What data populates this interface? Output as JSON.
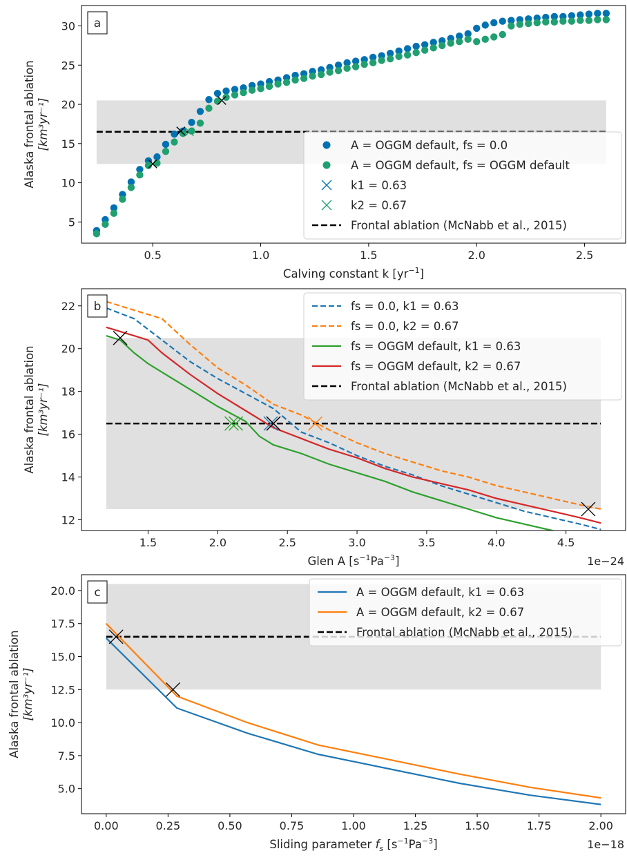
{
  "chart_data": [
    {
      "type": "scatter",
      "panel_label": "a",
      "xlabel_main": "Calving constant k [yr",
      "xlabel_sup": "−1",
      "xlabel_end": "]",
      "ylabel_line1": "Alaska frontal ablation",
      "ylabel_line2": "[km³yr⁻¹]",
      "xlim": [
        0.17,
        2.69
      ],
      "ylim": [
        2.3,
        32.6
      ],
      "xticks": [
        0.5,
        1.0,
        1.5,
        2.0,
        2.5
      ],
      "xtick_labels": [
        "0.5",
        "1.0",
        "1.5",
        "2.0",
        "2.5"
      ],
      "yticks": [
        5,
        10,
        15,
        20,
        25,
        30
      ],
      "ytick_labels": [
        "5",
        "10",
        "15",
        "20",
        "25",
        "30"
      ],
      "band": {
        "y0": 12.4,
        "y1": 20.5,
        "x0": 0.24,
        "x1": 2.6,
        "color": "#e0e0e0"
      },
      "hline": {
        "y": 16.5,
        "x0": 0.24,
        "x1": 2.6
      },
      "x": [
        0.24,
        0.28,
        0.32,
        0.36,
        0.4,
        0.44,
        0.48,
        0.52,
        0.56,
        0.6,
        0.64,
        0.68,
        0.72,
        0.76,
        0.8,
        0.84,
        0.88,
        0.92,
        0.96,
        1.0,
        1.04,
        1.08,
        1.12,
        1.16,
        1.2,
        1.24,
        1.28,
        1.32,
        1.36,
        1.4,
        1.44,
        1.48,
        1.52,
        1.56,
        1.6,
        1.64,
        1.68,
        1.72,
        1.76,
        1.8,
        1.84,
        1.88,
        1.92,
        1.96,
        2.0,
        2.04,
        2.08,
        2.12,
        2.16,
        2.2,
        2.24,
        2.28,
        2.32,
        2.36,
        2.4,
        2.44,
        2.48,
        2.52,
        2.56,
        2.6
      ],
      "series": [
        {
          "name": "A = OGGM default, fs = 0.0",
          "color": "#0072b2",
          "values": [
            3.9,
            5.3,
            6.8,
            8.5,
            10.1,
            11.7,
            12.8,
            13.3,
            14.9,
            16.2,
            16.6,
            17.7,
            19.1,
            20.6,
            21.4,
            21.7,
            21.9,
            22.1,
            22.4,
            22.6,
            22.9,
            23.1,
            23.4,
            23.7,
            23.9,
            24.2,
            24.4,
            24.7,
            25.0,
            25.3,
            25.5,
            25.7,
            26.0,
            26.2,
            26.5,
            26.8,
            27.1,
            27.4,
            27.6,
            27.9,
            28.1,
            28.4,
            28.7,
            29.0,
            29.7,
            30.1,
            30.4,
            30.6,
            30.7,
            30.8,
            30.9,
            31.0,
            31.1,
            31.2,
            31.2,
            31.3,
            31.4,
            31.5,
            31.6,
            31.6
          ]
        },
        {
          "name": "A = OGGM default, fs = OGGM default",
          "color": "#20a070",
          "values": [
            3.5,
            4.7,
            6.1,
            7.9,
            9.4,
            11.0,
            12.2,
            12.5,
            14.0,
            15.2,
            16.3,
            16.6,
            17.6,
            19.5,
            20.4,
            20.9,
            21.2,
            21.5,
            21.8,
            22.0,
            22.3,
            22.6,
            22.8,
            23.1,
            23.3,
            23.6,
            23.8,
            24.1,
            24.3,
            24.6,
            24.8,
            25.1,
            25.3,
            25.6,
            25.8,
            26.1,
            26.3,
            26.6,
            26.9,
            27.2,
            27.5,
            27.8,
            28.0,
            28.3,
            28.0,
            28.3,
            28.6,
            28.9,
            30.0,
            30.2,
            30.3,
            30.4,
            30.5,
            30.5,
            30.6,
            30.6,
            30.7,
            30.7,
            30.8,
            30.8
          ]
        }
      ],
      "markers": [
        {
          "name": "k1 = 0.63",
          "color": "#0072b2",
          "x": [
            0.63
          ],
          "y": [
            16.6
          ]
        },
        {
          "name": "k2 = 0.67",
          "color": "#20a070",
          "x": [
            0.67
          ],
          "y": [
            16.5
          ]
        }
      ],
      "black_markers": [
        {
          "x": 0.5,
          "y": 12.4
        },
        {
          "x": 0.63,
          "y": 16.6
        },
        {
          "x": 0.82,
          "y": 20.5
        }
      ],
      "legend": {
        "placement": "lower-right",
        "entries": [
          {
            "label": "A = OGGM default, fs = 0.0"
          },
          {
            "label": "A = OGGM default, fs = OGGM default"
          },
          {
            "label": "k1 = 0.63"
          },
          {
            "label": "k2 = 0.67"
          },
          {
            "label": "Frontal ablation (McNabb et al., 2015)"
          }
        ]
      }
    },
    {
      "type": "line",
      "panel_label": "b",
      "xlabel_main": "Glen A [s",
      "xlabel_sup1": "−1",
      "xlabel_mid": "Pa",
      "xlabel_sup2": "−3",
      "xlabel_end": "]",
      "offset_text": "1e−24",
      "ylabel_line1": "Alaska frontal ablation",
      "ylabel_line2": "[km³yr⁻¹]",
      "xlim": [
        1.022,
        4.928
      ],
      "ylim": [
        11.5,
        22.8
      ],
      "xticks": [
        1.5,
        2.0,
        2.5,
        3.0,
        3.5,
        4.0,
        4.5
      ],
      "xtick_labels": [
        "1.5",
        "2.0",
        "2.5",
        "3.0",
        "3.5",
        "4.0",
        "4.5"
      ],
      "yticks": [
        12,
        14,
        16,
        18,
        20,
        22
      ],
      "ytick_labels": [
        "12",
        "14",
        "16",
        "18",
        "20",
        "22"
      ],
      "band": {
        "y0": 12.5,
        "y1": 20.5,
        "x0": 1.2,
        "x1": 4.75,
        "color": "#e0e0e0"
      },
      "hline": {
        "y": 16.5,
        "x0": 1.2,
        "x1": 4.75
      },
      "series": [
        {
          "name": "fs = 0.0, k1 = 0.63",
          "color": "#1f77b4",
          "dash": true,
          "x": [
            1.2,
            1.4,
            1.6,
            1.8,
            2.0,
            2.2,
            2.4,
            2.6,
            2.8,
            3.0,
            3.2,
            3.4,
            3.6,
            3.8,
            4.0,
            4.2,
            4.4,
            4.6,
            4.75
          ],
          "y": [
            21.9,
            21.4,
            20.4,
            19.4,
            18.6,
            17.9,
            17.2,
            16.1,
            15.6,
            15.0,
            14.5,
            14.1,
            13.6,
            13.2,
            12.8,
            12.4,
            12.1,
            11.8,
            11.55
          ]
        },
        {
          "name": "fs = 0.0, k2 = 0.67",
          "color": "#ff7f0e",
          "dash": true,
          "x": [
            1.2,
            1.4,
            1.6,
            1.8,
            2.0,
            2.2,
            2.4,
            2.6,
            2.8,
            3.0,
            3.2,
            3.4,
            3.6,
            3.8,
            4.0,
            4.2,
            4.4,
            4.6,
            4.75
          ],
          "y": [
            22.2,
            21.8,
            21.4,
            20.2,
            19.1,
            18.3,
            17.4,
            16.9,
            16.2,
            15.6,
            15.1,
            14.7,
            14.3,
            14.0,
            13.6,
            13.3,
            13.0,
            12.7,
            12.5
          ]
        },
        {
          "name": "fs = OGGM default, k1 = 0.63",
          "color": "#2ca02c",
          "dash": false,
          "x": [
            1.2,
            1.3,
            1.4,
            1.5,
            1.6,
            1.8,
            2.0,
            2.2,
            2.3,
            2.4,
            2.6,
            2.8,
            3.0,
            3.2,
            3.4,
            3.6,
            3.8,
            4.0,
            4.2,
            4.4,
            4.6,
            4.75
          ],
          "y": [
            20.6,
            20.4,
            19.8,
            19.3,
            18.9,
            18.1,
            17.3,
            16.6,
            15.9,
            15.5,
            15.1,
            14.6,
            14.2,
            13.8,
            13.3,
            12.9,
            12.5,
            12.1,
            11.8,
            11.5,
            11.2,
            11.0
          ]
        },
        {
          "name": "fs = OGGM default, k2 = 0.67",
          "color": "#d62728",
          "dash": false,
          "x": [
            1.2,
            1.3,
            1.4,
            1.5,
            1.6,
            1.8,
            2.0,
            2.2,
            2.4,
            2.6,
            2.8,
            3.0,
            3.2,
            3.4,
            3.6,
            3.8,
            4.0,
            4.2,
            4.4,
            4.6,
            4.75
          ],
          "y": [
            21.0,
            20.8,
            20.6,
            20.4,
            19.8,
            18.8,
            17.9,
            17.1,
            16.3,
            15.8,
            15.3,
            14.9,
            14.4,
            14.0,
            13.7,
            13.4,
            13.0,
            12.7,
            12.4,
            12.1,
            11.85
          ]
        }
      ],
      "markers": [
        {
          "color": "#1f77b4",
          "x": 2.38,
          "y": 16.5
        },
        {
          "color": "#ff7f0e",
          "x": 2.7,
          "y": 16.5
        },
        {
          "color": "#2ca02c",
          "x": 2.1,
          "y": 16.5
        },
        {
          "color": "#2ca02c",
          "x": 2.13,
          "y": 16.5
        },
        {
          "color": "#d62728",
          "x": 2.4,
          "y": 16.5
        },
        {
          "color": "#000000",
          "x": 1.3,
          "y": 20.5
        },
        {
          "color": "#000000",
          "x": 2.4,
          "y": 16.5
        },
        {
          "color": "#000000",
          "x": 4.66,
          "y": 12.5
        }
      ],
      "legend": {
        "placement": "top-right",
        "entries": [
          {
            "label": "fs = 0.0, k1 = 0.63"
          },
          {
            "label": "fs = 0.0, k2 = 0.67"
          },
          {
            "label": "fs = OGGM default, k1 = 0.63"
          },
          {
            "label": "fs = OGGM default, k2 = 0.67"
          },
          {
            "label": "Frontal ablation (McNabb et al., 2015)"
          }
        ]
      }
    },
    {
      "type": "line",
      "panel_label": "c",
      "xlabel_main": "Sliding parameter ",
      "xlabel_var": "f",
      "xlabel_sub": "s",
      "xlabel_units_open": " [s",
      "xlabel_sup1": "−1",
      "xlabel_mid": "Pa",
      "xlabel_sup2": "−3",
      "xlabel_end": "]",
      "offset_text": "1e−18",
      "ylabel_line1": "Alaska frontal ablation",
      "ylabel_line2": "[km³yr⁻¹]",
      "xlim": [
        -0.1,
        2.1
      ],
      "ylim": [
        3.1,
        21.2
      ],
      "xticks": [
        0.0,
        0.25,
        0.5,
        0.75,
        1.0,
        1.25,
        1.5,
        1.75,
        2.0
      ],
      "xtick_labels": [
        "0.00",
        "0.25",
        "0.50",
        "0.75",
        "1.00",
        "1.25",
        "1.50",
        "1.75",
        "2.00"
      ],
      "yticks": [
        5.0,
        7.5,
        10.0,
        12.5,
        15.0,
        17.5,
        20.0
      ],
      "ytick_labels": [
        "5.0",
        "7.5",
        "10.0",
        "12.5",
        "15.0",
        "17.5",
        "20.0"
      ],
      "band": {
        "y0": 12.5,
        "y1": 20.5,
        "x0": 0.0,
        "x1": 2.0,
        "color": "#e0e0e0"
      },
      "hline": {
        "y": 16.5,
        "x0": 0.0,
        "x1": 2.0
      },
      "series": [
        {
          "name": "A = OGGM default, k1 = 0.63",
          "color": "#1f77b4",
          "x": [
            0.0,
            0.286,
            0.571,
            0.857,
            1.143,
            1.429,
            1.714,
            2.0
          ],
          "y": [
            16.4,
            11.1,
            9.2,
            7.6,
            6.5,
            5.4,
            4.5,
            3.8
          ]
        },
        {
          "name": "A = OGGM default, k2 = 0.67",
          "color": "#ff7f0e",
          "x": [
            0.0,
            0.286,
            0.571,
            0.857,
            1.143,
            1.429,
            1.714,
            2.0
          ],
          "y": [
            17.5,
            12.0,
            10.0,
            8.3,
            7.2,
            6.1,
            5.1,
            4.3
          ]
        }
      ],
      "markers": [
        {
          "color": "#000000",
          "x": 0.27,
          "y": 12.5
        },
        {
          "color": "#000000",
          "x": 0.04,
          "y": 16.5
        }
      ],
      "legend": {
        "placement": "top-right",
        "entries": [
          {
            "label": "A = OGGM default, k1 = 0.63"
          },
          {
            "label": "A = OGGM default, k2 = 0.67"
          },
          {
            "label": "Frontal ablation (McNabb et al., 2015)"
          }
        ]
      }
    }
  ]
}
